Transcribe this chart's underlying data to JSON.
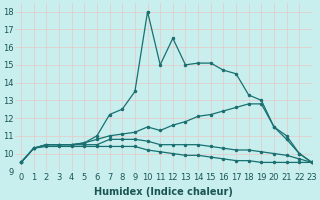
{
  "title": "",
  "xlabel": "Humidex (Indice chaleur)",
  "xlim": [
    -0.5,
    23
  ],
  "ylim": [
    9,
    18.5
  ],
  "bg_color": "#c8eeee",
  "grid_color": "#e8c8c8",
  "line_color": "#1a7070",
  "line1_y": [
    9.5,
    10.3,
    10.5,
    10.5,
    10.5,
    10.6,
    11.0,
    12.2,
    12.5,
    13.5,
    18.0,
    15.0,
    16.5,
    15.0,
    15.1,
    15.1,
    14.7,
    14.5,
    13.3,
    13.0,
    11.5,
    11.0,
    10.0,
    9.5
  ],
  "line2_y": [
    9.5,
    10.3,
    10.5,
    10.5,
    10.5,
    10.6,
    10.8,
    11.0,
    11.1,
    11.2,
    11.5,
    11.3,
    11.6,
    11.8,
    12.1,
    12.2,
    12.4,
    12.6,
    12.8,
    12.8,
    11.5,
    10.8,
    10.0,
    9.5
  ],
  "line3_y": [
    9.5,
    10.3,
    10.5,
    10.5,
    10.5,
    10.5,
    10.5,
    10.8,
    10.8,
    10.8,
    10.7,
    10.5,
    10.5,
    10.5,
    10.5,
    10.4,
    10.3,
    10.2,
    10.2,
    10.1,
    10.0,
    9.9,
    9.7,
    9.5
  ],
  "line4_y": [
    9.5,
    10.3,
    10.4,
    10.4,
    10.4,
    10.4,
    10.4,
    10.4,
    10.4,
    10.4,
    10.2,
    10.1,
    10.0,
    9.9,
    9.9,
    9.8,
    9.7,
    9.6,
    9.6,
    9.5,
    9.5,
    9.5,
    9.5,
    9.5
  ],
  "marker": ".",
  "marker_size": 3,
  "linewidth": 0.9,
  "font_size_label": 7,
  "font_size_tick": 6
}
